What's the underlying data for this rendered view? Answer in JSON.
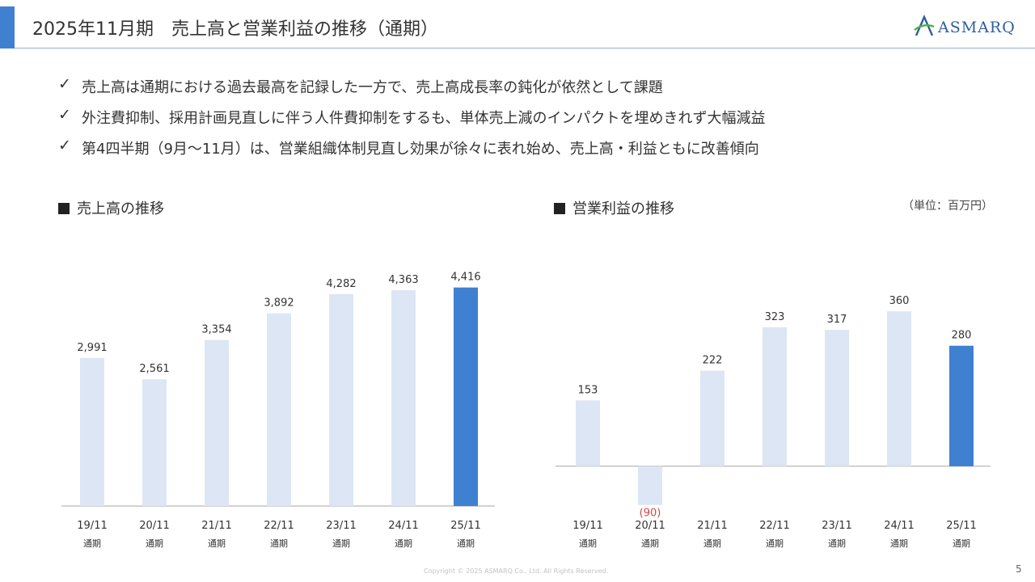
{
  "header": {
    "title": "2025年11月期　売上高と営業利益の推移（通期）",
    "logo_text": "ASMARQ",
    "accent_color": "#3f80d0"
  },
  "bullets": [
    "売上高は通期における過去最高を記録した一方で、売上高成長率の鈍化が依然として課題",
    "外注費抑制、採用計画見直しに伴う人件費抑制をするも、単体売上減のインパクトを埋めきれず大幅減益",
    "第4四半期（9月～11月）は、営業組織体制見直し効果が徐々に表れ始め、売上高・利益ともに改善傾向"
  ],
  "check_mark": "✓",
  "unit_label": "（単位：百万円）",
  "footer": {
    "copyright": "Copyright © 2025 ASMARQ Co., Ltd. All Rights Reserved.",
    "page_number": "5"
  },
  "chart_data": [
    {
      "type": "bar",
      "title": "売上高の推移",
      "categories": [
        "19/11",
        "20/11",
        "21/11",
        "22/11",
        "23/11",
        "24/11",
        "25/11"
      ],
      "sub_labels": [
        "通期",
        "通期",
        "通期",
        "通期",
        "通期",
        "通期",
        "通期"
      ],
      "values": [
        2991,
        2561,
        3354,
        3892,
        4282,
        4363,
        4416
      ],
      "value_labels": [
        "2,991",
        "2,561",
        "3,354",
        "3,892",
        "4,282",
        "4,363",
        "4,416"
      ],
      "ylim": [
        0,
        4600
      ],
      "grid": false,
      "bar_color": "#dce6f4",
      "highlight_color": "#3f80d0",
      "highlight_index": 6
    },
    {
      "type": "bar",
      "title": "営業利益の推移",
      "categories": [
        "19/11",
        "20/11",
        "21/11",
        "22/11",
        "23/11",
        "24/11",
        "25/11"
      ],
      "sub_labels": [
        "通期",
        "通期",
        "通期",
        "通期",
        "通期",
        "通期",
        "通期"
      ],
      "values": [
        153,
        -90,
        222,
        323,
        317,
        360,
        280
      ],
      "value_labels": [
        "153",
        "(90)",
        "222",
        "323",
        "317",
        "360",
        "280"
      ],
      "ylim": [
        -100,
        420
      ],
      "grid": false,
      "bar_color": "#dce6f4",
      "highlight_color": "#3f80d0",
      "highlight_index": 6,
      "negative_label_color": "#d64545"
    }
  ]
}
